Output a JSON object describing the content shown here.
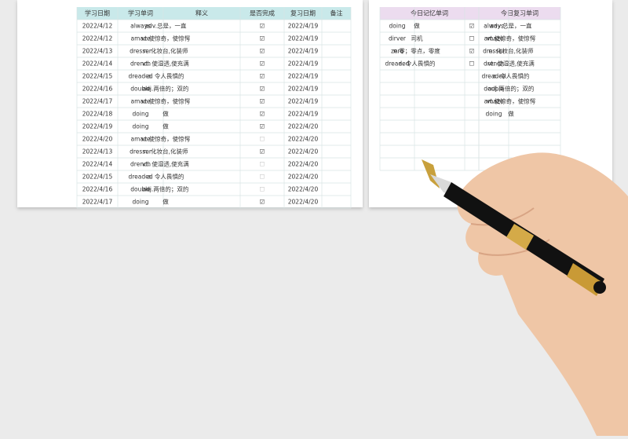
{
  "study_table": {
    "headers": [
      "学习日期",
      "学习单词",
      "释义",
      "是否完成",
      "复习日期",
      "备注"
    ],
    "rows": [
      [
        "2022/4/12",
        "always",
        "adv.总是，一直",
        "☑",
        "2022/4/19"
      ],
      [
        "2022/4/12",
        "amaze",
        "vt.使惊奇，使惊愕",
        "☑",
        "2022/4/19"
      ],
      [
        "2022/4/13",
        "dresser",
        "n. 化妆台,化装师",
        "☑",
        "2022/4/19"
      ],
      [
        "2022/4/14",
        "drench",
        "vt. 使湿透,使充满",
        "☑",
        "2022/4/19"
      ],
      [
        "2022/4/15",
        "dreaded",
        "a. 令人畏惧的",
        "☑",
        "2022/4/19"
      ],
      [
        "2022/4/16",
        "double",
        "adj.两倍的；双的",
        "☑",
        "2022/4/19"
      ],
      [
        "2022/4/17",
        "amaze",
        "vt.使惊奇，使惊愕",
        "☑",
        "2022/4/19"
      ],
      [
        "2022/4/18",
        "doing",
        "做",
        "☑",
        "2022/4/19"
      ],
      [
        "2022/4/19",
        "doing",
        "做",
        "☑",
        "2022/4/20"
      ],
      [
        "2022/4/20",
        "amaze",
        "vt.使惊奇，使惊愕",
        "☐",
        "2022/4/20"
      ],
      [
        "2022/4/13",
        "dresser",
        "n. 化妆台,化装师",
        "☑",
        "2022/4/20"
      ],
      [
        "2022/4/14",
        "drench",
        "vt. 使湿透,使充满",
        "☐",
        "2022/4/20"
      ],
      [
        "2022/4/15",
        "dreaded",
        "a. 令人畏惧的",
        "☐",
        "2022/4/20"
      ],
      [
        "2022/4/16",
        "double",
        "adj.两倍的；双的",
        "☐",
        "2022/4/20"
      ],
      [
        "2022/4/17",
        "doing",
        "做",
        "☑",
        "2022/4/20"
      ]
    ]
  },
  "memory_table": {
    "header": "今日记忆单词",
    "rows": [
      [
        "doing",
        "做",
        "☑"
      ],
      [
        "dirver",
        "司机",
        "☐"
      ],
      [
        "zero",
        "n.零；零点，零度",
        "☑"
      ],
      [
        "dreaded",
        "a. 令人畏惧的",
        "☐"
      ]
    ]
  },
  "review_table": {
    "header": "今日复习单词",
    "rows": [
      [
        "always",
        "adv.总是，一直"
      ],
      [
        "amaze",
        "vt.使惊奇，使惊愕"
      ],
      [
        "dresser",
        "n. 化妆台,化装师"
      ],
      [
        "drench",
        "vt. 使湿透,使充满"
      ],
      [
        "dreaded",
        "a. 令人畏惧的"
      ],
      [
        "double",
        "adj.两倍的；双的"
      ],
      [
        "amaze",
        "vt.使惊奇，使惊愕"
      ],
      [
        "doing",
        "做"
      ]
    ]
  }
}
